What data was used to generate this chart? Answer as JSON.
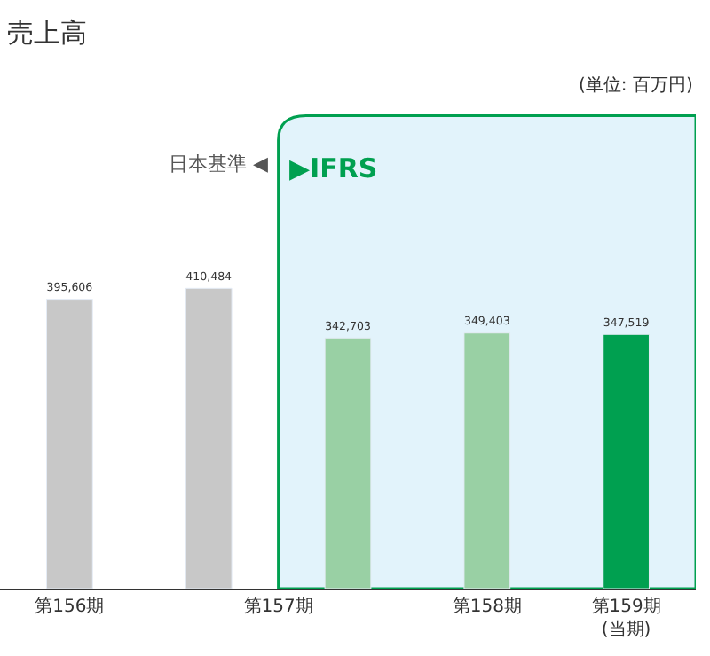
{
  "chart_data": {
    "type": "bar",
    "title": "売上高",
    "categories": [
      "第156期",
      "第157期",
      null,
      "第158期",
      "第159期\n(当期)"
    ],
    "values": [
      395606,
      410484,
      342703,
      349403,
      347519
    ],
    "colors": [
      "#c8c8c8",
      "#c8c8c8",
      "#99d0a4",
      "#99d0a4",
      "#00a050"
    ],
    "value_labels": [
      "395,606",
      "410,484",
      "342,703",
      "349,403",
      "347,519"
    ],
    "bands": [
      {
        "axis": "x",
        "from": "第157期",
        "to": "第159期\n(当期)",
        "label": "▶IFRS",
        "color": "#e2f3fb"
      }
    ],
    "annotations": [
      "日本基準 ◀",
      "(単位: 百万円)"
    ],
    "legend": false
  }
}
